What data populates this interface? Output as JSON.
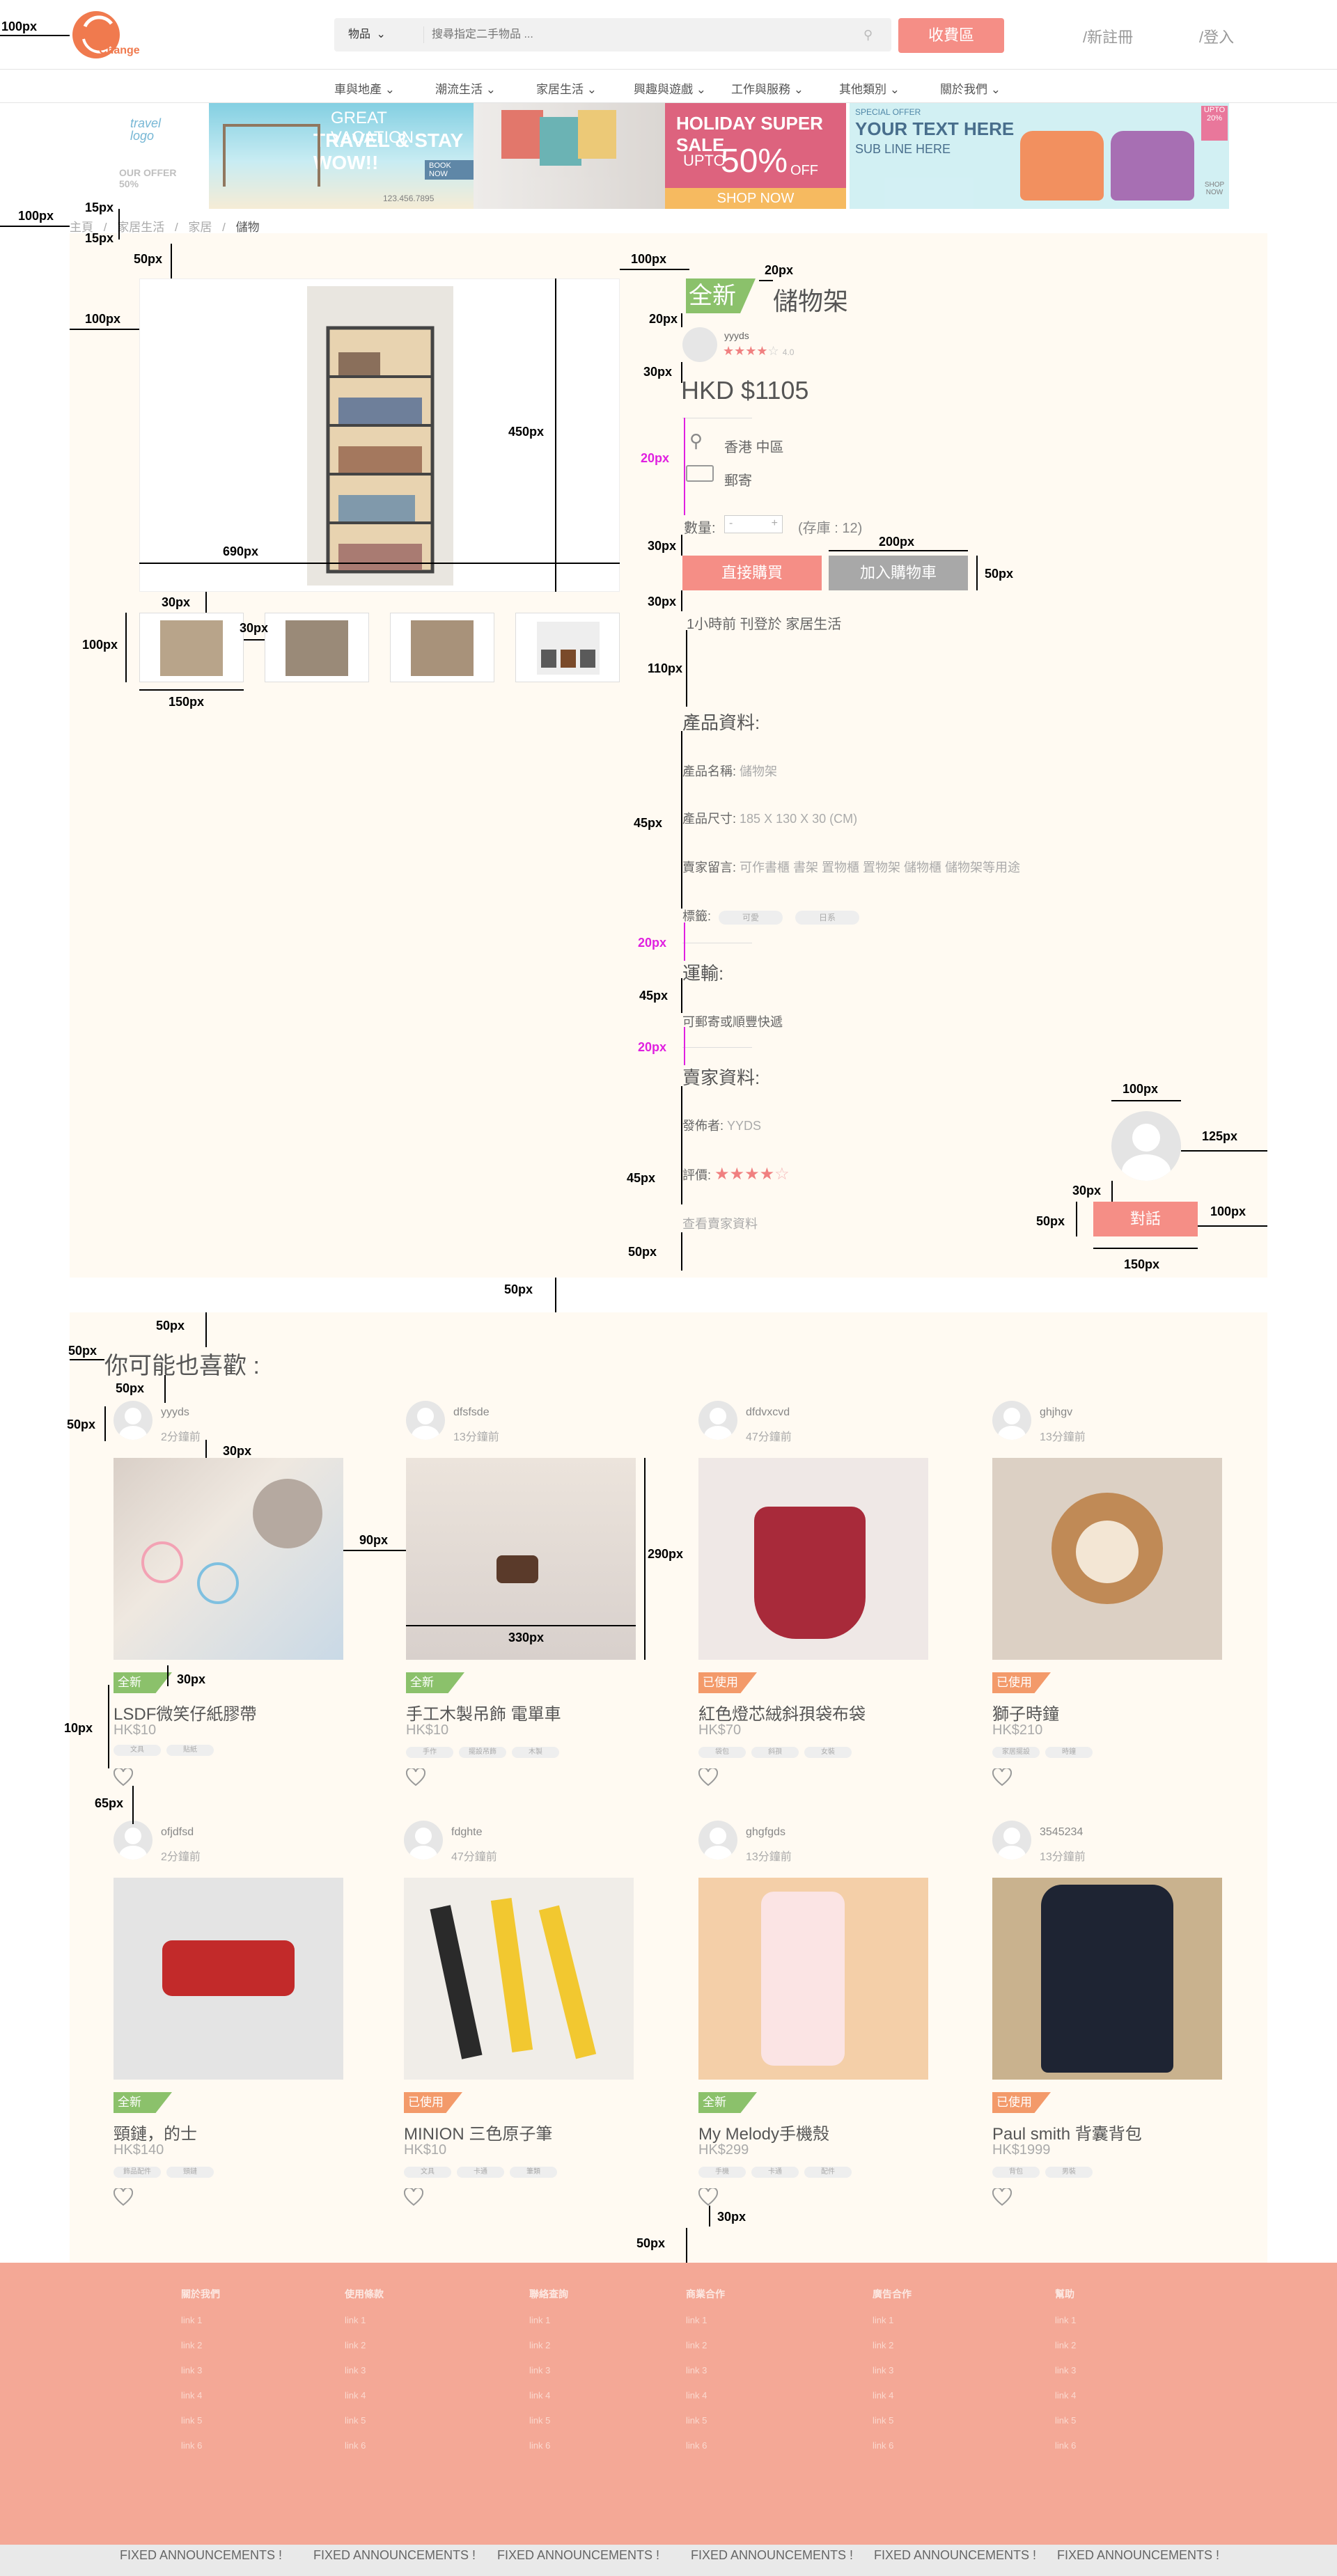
{
  "colors": {
    "accent": "#f58e86",
    "gray_button": "#a8a8a8",
    "new_badge": "#8bc16b",
    "used_badge": "#f39a6a",
    "footer": "#f4a896",
    "page_bg": "#fffdf8"
  },
  "header": {
    "logo_text": "Change",
    "category_select": "物品",
    "search_placeholder": "搜尋指定二手物品 ...",
    "sell_button": "收費區",
    "register": "新註冊",
    "login": "登入"
  },
  "nav": [
    {
      "label": "車與地產"
    },
    {
      "label": "潮流生活"
    },
    {
      "label": "家居生活"
    },
    {
      "label": "興趣與遊戲"
    },
    {
      "label": "工作與服務"
    },
    {
      "label": "其他類別"
    },
    {
      "label": "關於我們"
    }
  ],
  "banners": {
    "travel_logo": "travel logo",
    "travel_offer": "OUR OFFER 50%",
    "vacation_title": "GREAT VACATION",
    "vacation_line2": "TRAVEL & STAY WOW!!",
    "vacation_book": "BOOK NOW",
    "vacation_phone": "123.456.7895",
    "sale_title": "HOLIDAY SUPER SALE",
    "sale_upto": "UPTO",
    "sale_pct": "50%",
    "sale_off": "OFF",
    "sale_shop": "SHOP NOW",
    "special_offer": "SPECIAL OFFER",
    "your_text": "YOUR TEXT HERE",
    "sub_line": "SUB LINE HERE",
    "upto_badge": "UPTO 20%",
    "shop_badge": "SHOP NOW"
  },
  "breadcrumb": [
    "主頁",
    "家居生活",
    "家居",
    "儲物"
  ],
  "product": {
    "badge": "全新",
    "title": "儲物架",
    "seller_name": "yyyds",
    "rating_text": "4.0",
    "price": "HKD $1105",
    "location": "香港 中區",
    "shipping": "郵寄",
    "qty_label": "數量:",
    "qty_minus": "-",
    "qty_plus": "+",
    "stock": "(存庫 : 12)",
    "buy_now": "直接購買",
    "add_cart": "加入購物車",
    "posted": "1小時前 刊登於 家居生活"
  },
  "product_info": {
    "heading": "產品資料:",
    "name_label": "產品名稱:",
    "name_value": "儲物架",
    "size_label": "產品尺寸:",
    "size_value": "185 X 130 X 30 (CM)",
    "note_label": "賣家留言:",
    "note_value": "可作書櫃 書架 置物櫃 置物架 儲物櫃 儲物架等用途",
    "tags_label": "標籤:",
    "tags": [
      "可愛",
      "日系"
    ]
  },
  "shipping_info": {
    "heading": "運輸:",
    "value": "可郵寄或順豐快遞"
  },
  "seller_info": {
    "heading": "賣家資料:",
    "publisher_label": "發佈者:",
    "publisher_value": "YYDS",
    "rating_label": "評價:",
    "view_link": "查看賣家資料",
    "chat_button": "對話"
  },
  "recommend": {
    "heading": "你可能也喜歡 :",
    "items": [
      {
        "user": "yyyds",
        "time": "2分鐘前",
        "badge": "全新",
        "title": "LSDF微笑仔紙膠帶",
        "price": "HK$10",
        "tags": [
          "文具",
          "貼紙"
        ]
      },
      {
        "user": "dfsfsde",
        "time": "13分鐘前",
        "badge": "全新",
        "title": "手工木製吊飾 電單車",
        "price": "HK$10",
        "tags": [
          "手作",
          "擺設吊飾",
          "木製"
        ]
      },
      {
        "user": "dfdvxcvd",
        "time": "47分鐘前",
        "badge": "已使用",
        "title": "紅色燈芯絨斜孭袋布袋",
        "price": "HK$70",
        "tags": [
          "袋包",
          "斜孭",
          "女裝"
        ]
      },
      {
        "user": "ghjhgv",
        "time": "13分鐘前",
        "badge": "已使用",
        "title": "獅子時鐘",
        "price": "HK$210",
        "tags": [
          "家居擺設",
          "時鐘"
        ]
      },
      {
        "user": "ofjdfsd",
        "time": "2分鐘前",
        "badge": "全新",
        "title": "頸鏈，的士",
        "price": "HK$140",
        "tags": [
          "飾品配件",
          "頸鏈"
        ]
      },
      {
        "user": "fdghte",
        "time": "47分鐘前",
        "badge": "已使用",
        "title": "MINION 三色原子筆",
        "price": "HK$10",
        "tags": [
          "文具",
          "卡通",
          "筆類"
        ]
      },
      {
        "user": "ghgfgds",
        "time": "13分鐘前",
        "badge": "全新",
        "title": "My Melody手機殼",
        "price": "HK$299",
        "tags": [
          "手機",
          "卡通",
          "配件"
        ]
      },
      {
        "user": "3545234",
        "time": "13分鐘前",
        "badge": "已使用",
        "title": "Paul smith 背囊背包",
        "price": "HK$1999",
        "tags": [
          "背包",
          "男裝"
        ]
      }
    ]
  },
  "footer": {
    "columns": [
      {
        "heading": "關於我們",
        "items": [
          "link 1",
          "link 2",
          "link 3",
          "link 4",
          "link 5",
          "link 6"
        ]
      },
      {
        "heading": "使用條款",
        "items": [
          "link 1",
          "link 2",
          "link 3",
          "link 4",
          "link 5",
          "link 6"
        ]
      },
      {
        "heading": "聯絡查詢",
        "items": [
          "link 1",
          "link 2",
          "link 3",
          "link 4",
          "link 5",
          "link 6"
        ]
      },
      {
        "heading": "商業合作",
        "items": [
          "link 1",
          "link 2",
          "link 3",
          "link 4",
          "link 5",
          "link 6"
        ]
      },
      {
        "heading": "廣告合作",
        "items": [
          "link 1",
          "link 2",
          "link 3",
          "link 4",
          "link 5",
          "link 6"
        ]
      },
      {
        "heading": "幫助",
        "items": [
          "link 1",
          "link 2",
          "link 3",
          "link 4",
          "link 5",
          "link 6"
        ]
      }
    ],
    "announcements": [
      "FIXED ANNOUNCEMENTS !",
      "FIXED ANNOUNCEMENTS !",
      "FIXED ANNOUNCEMENTS !",
      "FIXED ANNOUNCEMENTS !",
      "FIXED ANNOUNCEMENTS !",
      "FIXED ANNOUNCEMENTS !"
    ]
  },
  "annotations": {
    "a100": "100px",
    "a15": "15px",
    "a50": "50px",
    "a20": "20px",
    "a30": "30px",
    "a450": "450px",
    "a690": "690px",
    "a200": "200px",
    "a110": "110px",
    "a45": "45px",
    "a150": "150px",
    "a125": "125px",
    "a10": "10px",
    "a65": "65px",
    "a90": "90px",
    "a290": "290px",
    "a330": "330px"
  }
}
